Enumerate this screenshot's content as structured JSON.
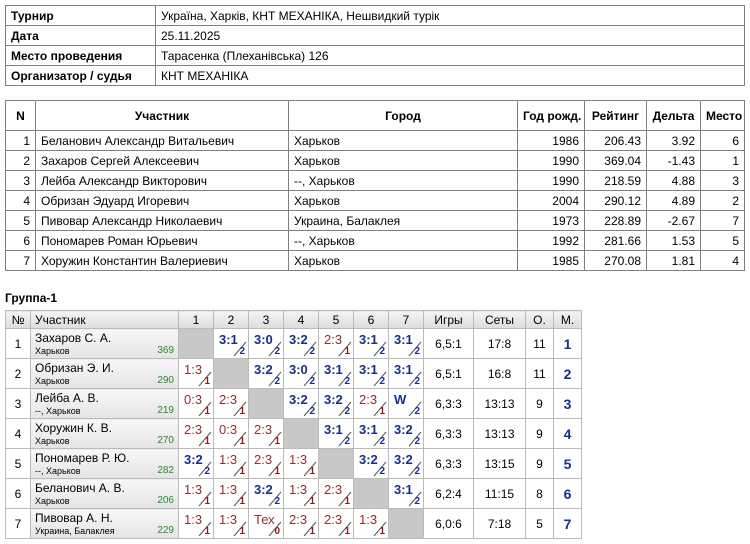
{
  "info": {
    "rows": [
      [
        "Турнир",
        "Україна, Харків, КНТ МЕХАНІКА, Нешвидкий турік"
      ],
      [
        "Дата",
        "25.11.2025"
      ],
      [
        "Место проведения",
        "Тарасенка (Плеханівська) 126"
      ],
      [
        "Организатор / судья",
        "КНТ МЕХАНІКА"
      ]
    ]
  },
  "participants": {
    "headers": [
      "N",
      "Участник",
      "Город",
      "Год рожд.",
      "Рейтинг",
      "Дельта",
      "Место"
    ],
    "rows": [
      [
        "1",
        "Беланович Александр Витальевич",
        "Харьков",
        "1986",
        "206.43",
        "3.92",
        "6"
      ],
      [
        "2",
        "Захаров Сергей Алексеевич",
        "Харьков",
        "1990",
        "369.04",
        "-1.43",
        "1"
      ],
      [
        "3",
        "Лейба Александр Викторович",
        "--, Харьков",
        "1990",
        "218.59",
        "4.88",
        "3"
      ],
      [
        "4",
        "Обризан Эдуард Игоревич",
        "Харьков",
        "2004",
        "290.12",
        "4.89",
        "2"
      ],
      [
        "5",
        "Пивовар Александр Николаевич",
        "Украина, Балаклея",
        "1973",
        "228.89",
        "-2.67",
        "7"
      ],
      [
        "6",
        "Пономарев Роман Юрьевич",
        "--, Харьков",
        "1992",
        "281.66",
        "1.53",
        "5"
      ],
      [
        "7",
        "Хоружин Константин Валериевич",
        "Харьков",
        "1985",
        "270.08",
        "1.81",
        "4"
      ]
    ]
  },
  "group": {
    "title": "Группа-1",
    "headers": [
      "№",
      "Участник",
      "1",
      "2",
      "3",
      "4",
      "5",
      "6",
      "7",
      "Игры",
      "Сеты",
      "О.",
      "М."
    ],
    "rows": [
      {
        "n": "1",
        "name": "Захаров С. А.",
        "city": "Харьков",
        "rating": "369",
        "cells": [
          null,
          {
            "score": "3:1",
            "pts": "2"
          },
          {
            "score": "3:0",
            "pts": "2"
          },
          {
            "score": "3:2",
            "pts": "2"
          },
          {
            "score": "2:3",
            "pts": "1"
          },
          {
            "score": "3:1",
            "pts": "2"
          },
          {
            "score": "3:1",
            "pts": "2"
          }
        ],
        "games": "6,5:1",
        "sets": "17:8",
        "points": "11",
        "place": "1"
      },
      {
        "n": "2",
        "name": "Обризан Э. И.",
        "city": "Харьков",
        "rating": "290",
        "cells": [
          {
            "score": "1:3",
            "pts": "1"
          },
          null,
          {
            "score": "3:2",
            "pts": "2"
          },
          {
            "score": "3:0",
            "pts": "2"
          },
          {
            "score": "3:1",
            "pts": "2"
          },
          {
            "score": "3:1",
            "pts": "2"
          },
          {
            "score": "3:1",
            "pts": "2"
          }
        ],
        "games": "6,5:1",
        "sets": "16:8",
        "points": "11",
        "place": "2"
      },
      {
        "n": "3",
        "name": "Лейба А. В.",
        "city": "--, Харьков",
        "rating": "219",
        "cells": [
          {
            "score": "0:3",
            "pts": "1"
          },
          {
            "score": "2:3",
            "pts": "1"
          },
          null,
          {
            "score": "3:2",
            "pts": "2"
          },
          {
            "score": "3:2",
            "pts": "2"
          },
          {
            "score": "2:3",
            "pts": "1"
          },
          {
            "score": "W",
            "pts": "2"
          }
        ],
        "games": "6,3:3",
        "sets": "13:13",
        "points": "9",
        "place": "3"
      },
      {
        "n": "4",
        "name": "Хоружин К. В.",
        "city": "Харьков",
        "rating": "270",
        "cells": [
          {
            "score": "2:3",
            "pts": "1"
          },
          {
            "score": "0:3",
            "pts": "1"
          },
          {
            "score": "2:3",
            "pts": "1"
          },
          null,
          {
            "score": "3:1",
            "pts": "2"
          },
          {
            "score": "3:1",
            "pts": "2"
          },
          {
            "score": "3:2",
            "pts": "2"
          }
        ],
        "games": "6,3:3",
        "sets": "13:13",
        "points": "9",
        "place": "4"
      },
      {
        "n": "5",
        "name": "Пономарев Р. Ю.",
        "city": "--, Харьков",
        "rating": "282",
        "cells": [
          {
            "score": "3:2",
            "pts": "2"
          },
          {
            "score": "1:3",
            "pts": "1"
          },
          {
            "score": "2:3",
            "pts": "1"
          },
          {
            "score": "1:3",
            "pts": "1"
          },
          null,
          {
            "score": "3:2",
            "pts": "2"
          },
          {
            "score": "3:2",
            "pts": "2"
          }
        ],
        "games": "6,3:3",
        "sets": "13:15",
        "points": "9",
        "place": "5"
      },
      {
        "n": "6",
        "name": "Беланович А. В.",
        "city": "Харьков",
        "rating": "206",
        "cells": [
          {
            "score": "1:3",
            "pts": "1"
          },
          {
            "score": "1:3",
            "pts": "1"
          },
          {
            "score": "3:2",
            "pts": "2"
          },
          {
            "score": "1:3",
            "pts": "1"
          },
          {
            "score": "2:3",
            "pts": "1"
          },
          null,
          {
            "score": "3:1",
            "pts": "2"
          }
        ],
        "games": "6,2:4",
        "sets": "11:15",
        "points": "8",
        "place": "6"
      },
      {
        "n": "7",
        "name": "Пивовар А. Н.",
        "city": "Украина, Балаклея",
        "rating": "229",
        "cells": [
          {
            "score": "1:3",
            "pts": "1"
          },
          {
            "score": "1:3",
            "pts": "1"
          },
          {
            "score": "Тех",
            "pts": "0"
          },
          {
            "score": "2:3",
            "pts": "1"
          },
          {
            "score": "2:3",
            "pts": "1"
          },
          {
            "score": "1:3",
            "pts": "1"
          },
          null
        ],
        "games": "6,0:6",
        "sets": "7:18",
        "points": "5",
        "place": "7"
      }
    ]
  }
}
